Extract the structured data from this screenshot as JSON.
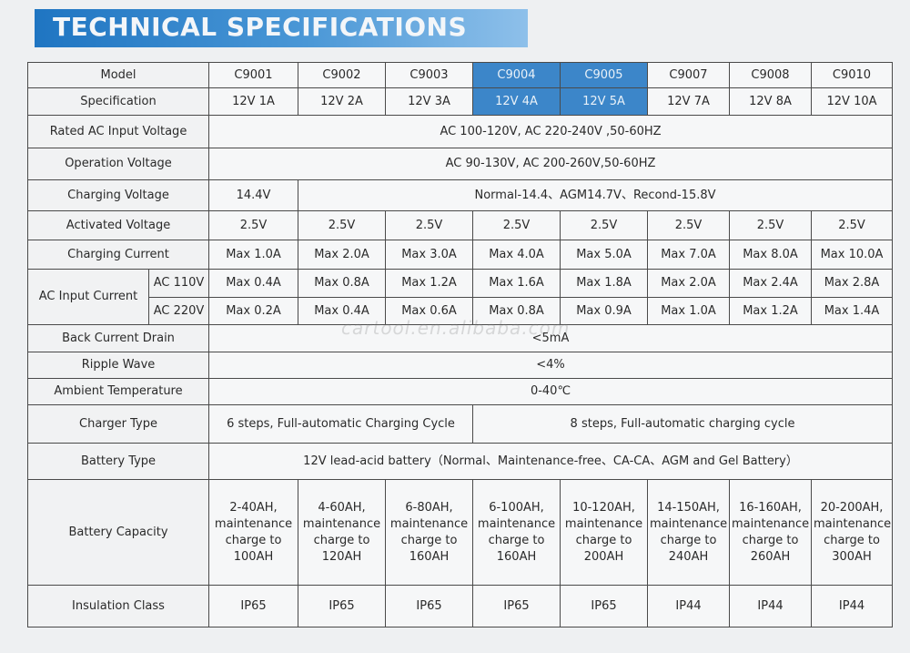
{
  "title": "TECHNICAL SPECIFICATIONS",
  "watermark": "cartool.en.alibaba.com",
  "colors": {
    "banner": "#2a7cc6",
    "highlight": "#3c86c9",
    "border": "#4a4a4a"
  },
  "labels": {
    "model": "Model",
    "specification": "Specification",
    "rated_ac": "Rated AC Input Voltage",
    "operation": "Operation Voltage",
    "charging_voltage": "Charging Voltage",
    "activated_voltage": "Activated Voltage",
    "charging_current": "Charging Current",
    "ac_input_current": "AC Input Current",
    "ac110": "AC 110V",
    "ac220": "AC 220V",
    "back_current": "Back Current Drain",
    "ripple": "Ripple Wave",
    "ambient": "Ambient Temperature",
    "charger_type": "Charger Type",
    "battery_type": "Battery Type",
    "battery_capacity": "Battery Capacity",
    "insulation": "Insulation Class"
  },
  "models": [
    "C9001",
    "C9002",
    "C9003",
    "C9004",
    "C9005",
    "C9007",
    "C9008",
    "C9010"
  ],
  "specs": [
    "12V 1A",
    "12V 2A",
    "12V 3A",
    "12V 4A",
    "12V 5A",
    "12V 7A",
    "12V 8A",
    "12V 10A"
  ],
  "rated_ac_value": "AC 100-120V,  AC 220-240V ,50-60HZ",
  "operation_value": "AC 90-130V,  AC 200-260V,50-60HZ",
  "charging_voltage": {
    "first": "14.4V",
    "rest": "Normal-14.4、AGM14.7V、Recond-15.8V"
  },
  "activated_voltage": [
    "2.5V",
    "2.5V",
    "2.5V",
    "2.5V",
    "2.5V",
    "2.5V",
    "2.5V",
    "2.5V"
  ],
  "charging_current": [
    "Max 1.0A",
    "Max 2.0A",
    "Max 3.0A",
    "Max 4.0A",
    "Max 5.0A",
    "Max 7.0A",
    "Max 8.0A",
    "Max 10.0A"
  ],
  "ac110_current": [
    "Max 0.4A",
    "Max 0.8A",
    "Max 1.2A",
    "Max 1.6A",
    "Max 1.8A",
    "Max 2.0A",
    "Max 2.4A",
    "Max 2.8A"
  ],
  "ac220_current": [
    "Max 0.2A",
    "Max 0.4A",
    "Max 0.6A",
    "Max 0.8A",
    "Max 0.9A",
    "Max 1.0A",
    "Max 1.2A",
    "Max 1.4A"
  ],
  "back_current_value": "<5mA",
  "ripple_value": "<4%",
  "ambient_value": "0-40℃",
  "charger_type": {
    "a": "6 steps, Full-automatic Charging Cycle",
    "b": "8 steps, Full-automatic charging cycle"
  },
  "battery_type_value": "12V lead-acid battery（Normal、Maintenance-free、CA-CA、AGM and Gel Battery）",
  "battery_capacity": [
    [
      "2-40AH,",
      "maintenance",
      "charge to",
      "100AH"
    ],
    [
      "4-60AH,",
      "maintenance",
      "charge to",
      "120AH"
    ],
    [
      "6-80AH,",
      "maintenance",
      "charge to",
      "160AH"
    ],
    [
      "6-100AH,",
      "maintenance",
      "charge to",
      "160AH"
    ],
    [
      "10-120AH,",
      "maintenance",
      "charge to",
      "200AH"
    ],
    [
      "14-150AH,",
      "maintenance",
      "charge to",
      "240AH"
    ],
    [
      "16-160AH,",
      "maintenance",
      "charge to",
      "260AH"
    ],
    [
      "20-200AH,",
      "maintenance",
      "charge to",
      "300AH"
    ]
  ],
  "insulation": [
    "IP65",
    "IP65",
    "IP65",
    "IP65",
    "IP65",
    "IP44",
    "IP44",
    "IP44"
  ]
}
